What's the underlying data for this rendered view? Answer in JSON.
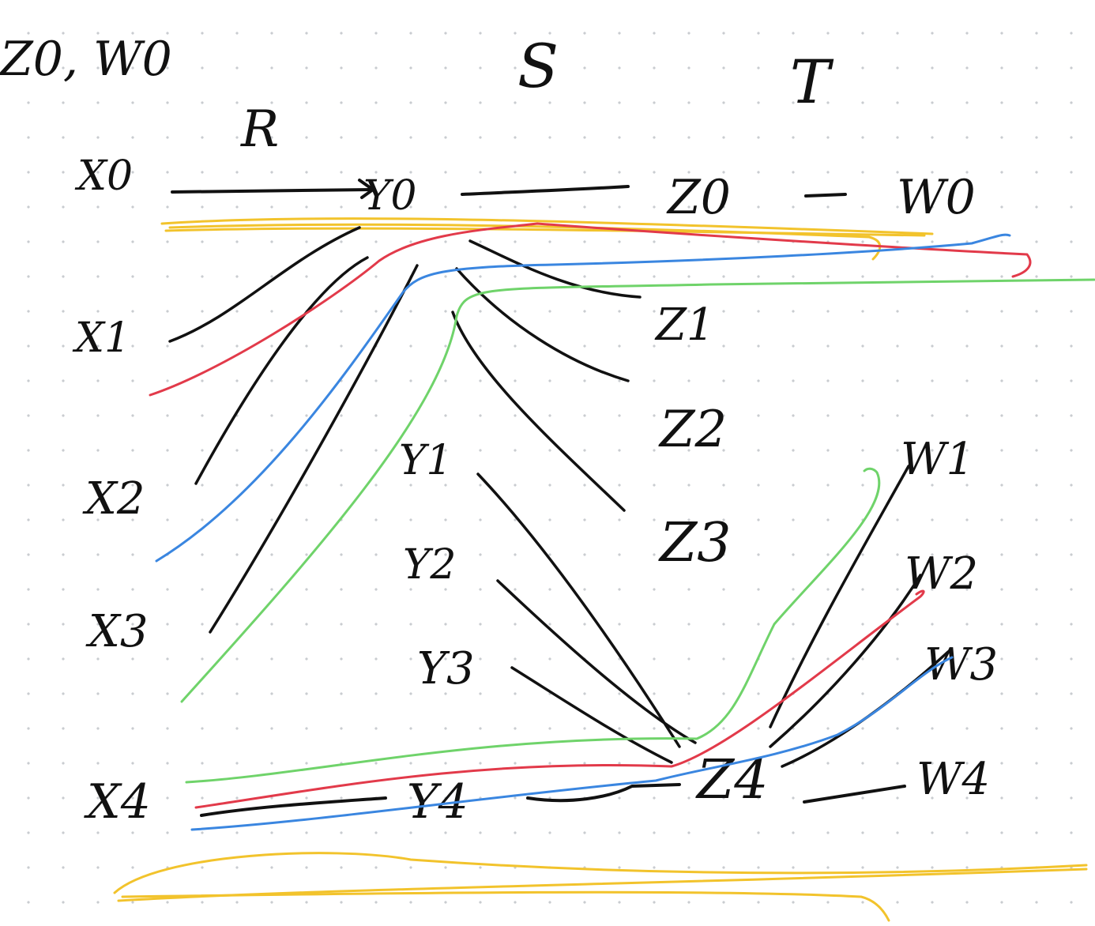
{
  "header": {
    "left_note": "Z0, W0",
    "relation_r": "R",
    "relation_s": "S",
    "relation_t": "T"
  },
  "labels": {
    "x0": "X0",
    "x1": "X1",
    "x2": "X2",
    "x3": "X3",
    "x4": "X4",
    "y0": "Y0",
    "y1": "Y1",
    "y2": "Y2",
    "y3": "Y3",
    "y4": "Y4",
    "z0": "Z0",
    "z1": "Z1",
    "z2": "Z2",
    "z3": "Z3",
    "z4": "Z4",
    "w0": "W0",
    "w1": "W1",
    "w2": "W2",
    "w3": "W3",
    "w4": "W4"
  },
  "colors": {
    "ink": "#111111",
    "yellow": "#f2c32c",
    "red": "#e23a4a",
    "blue": "#3a86e0",
    "green": "#6fd36a",
    "grid_dot": "#c9ccd0"
  }
}
